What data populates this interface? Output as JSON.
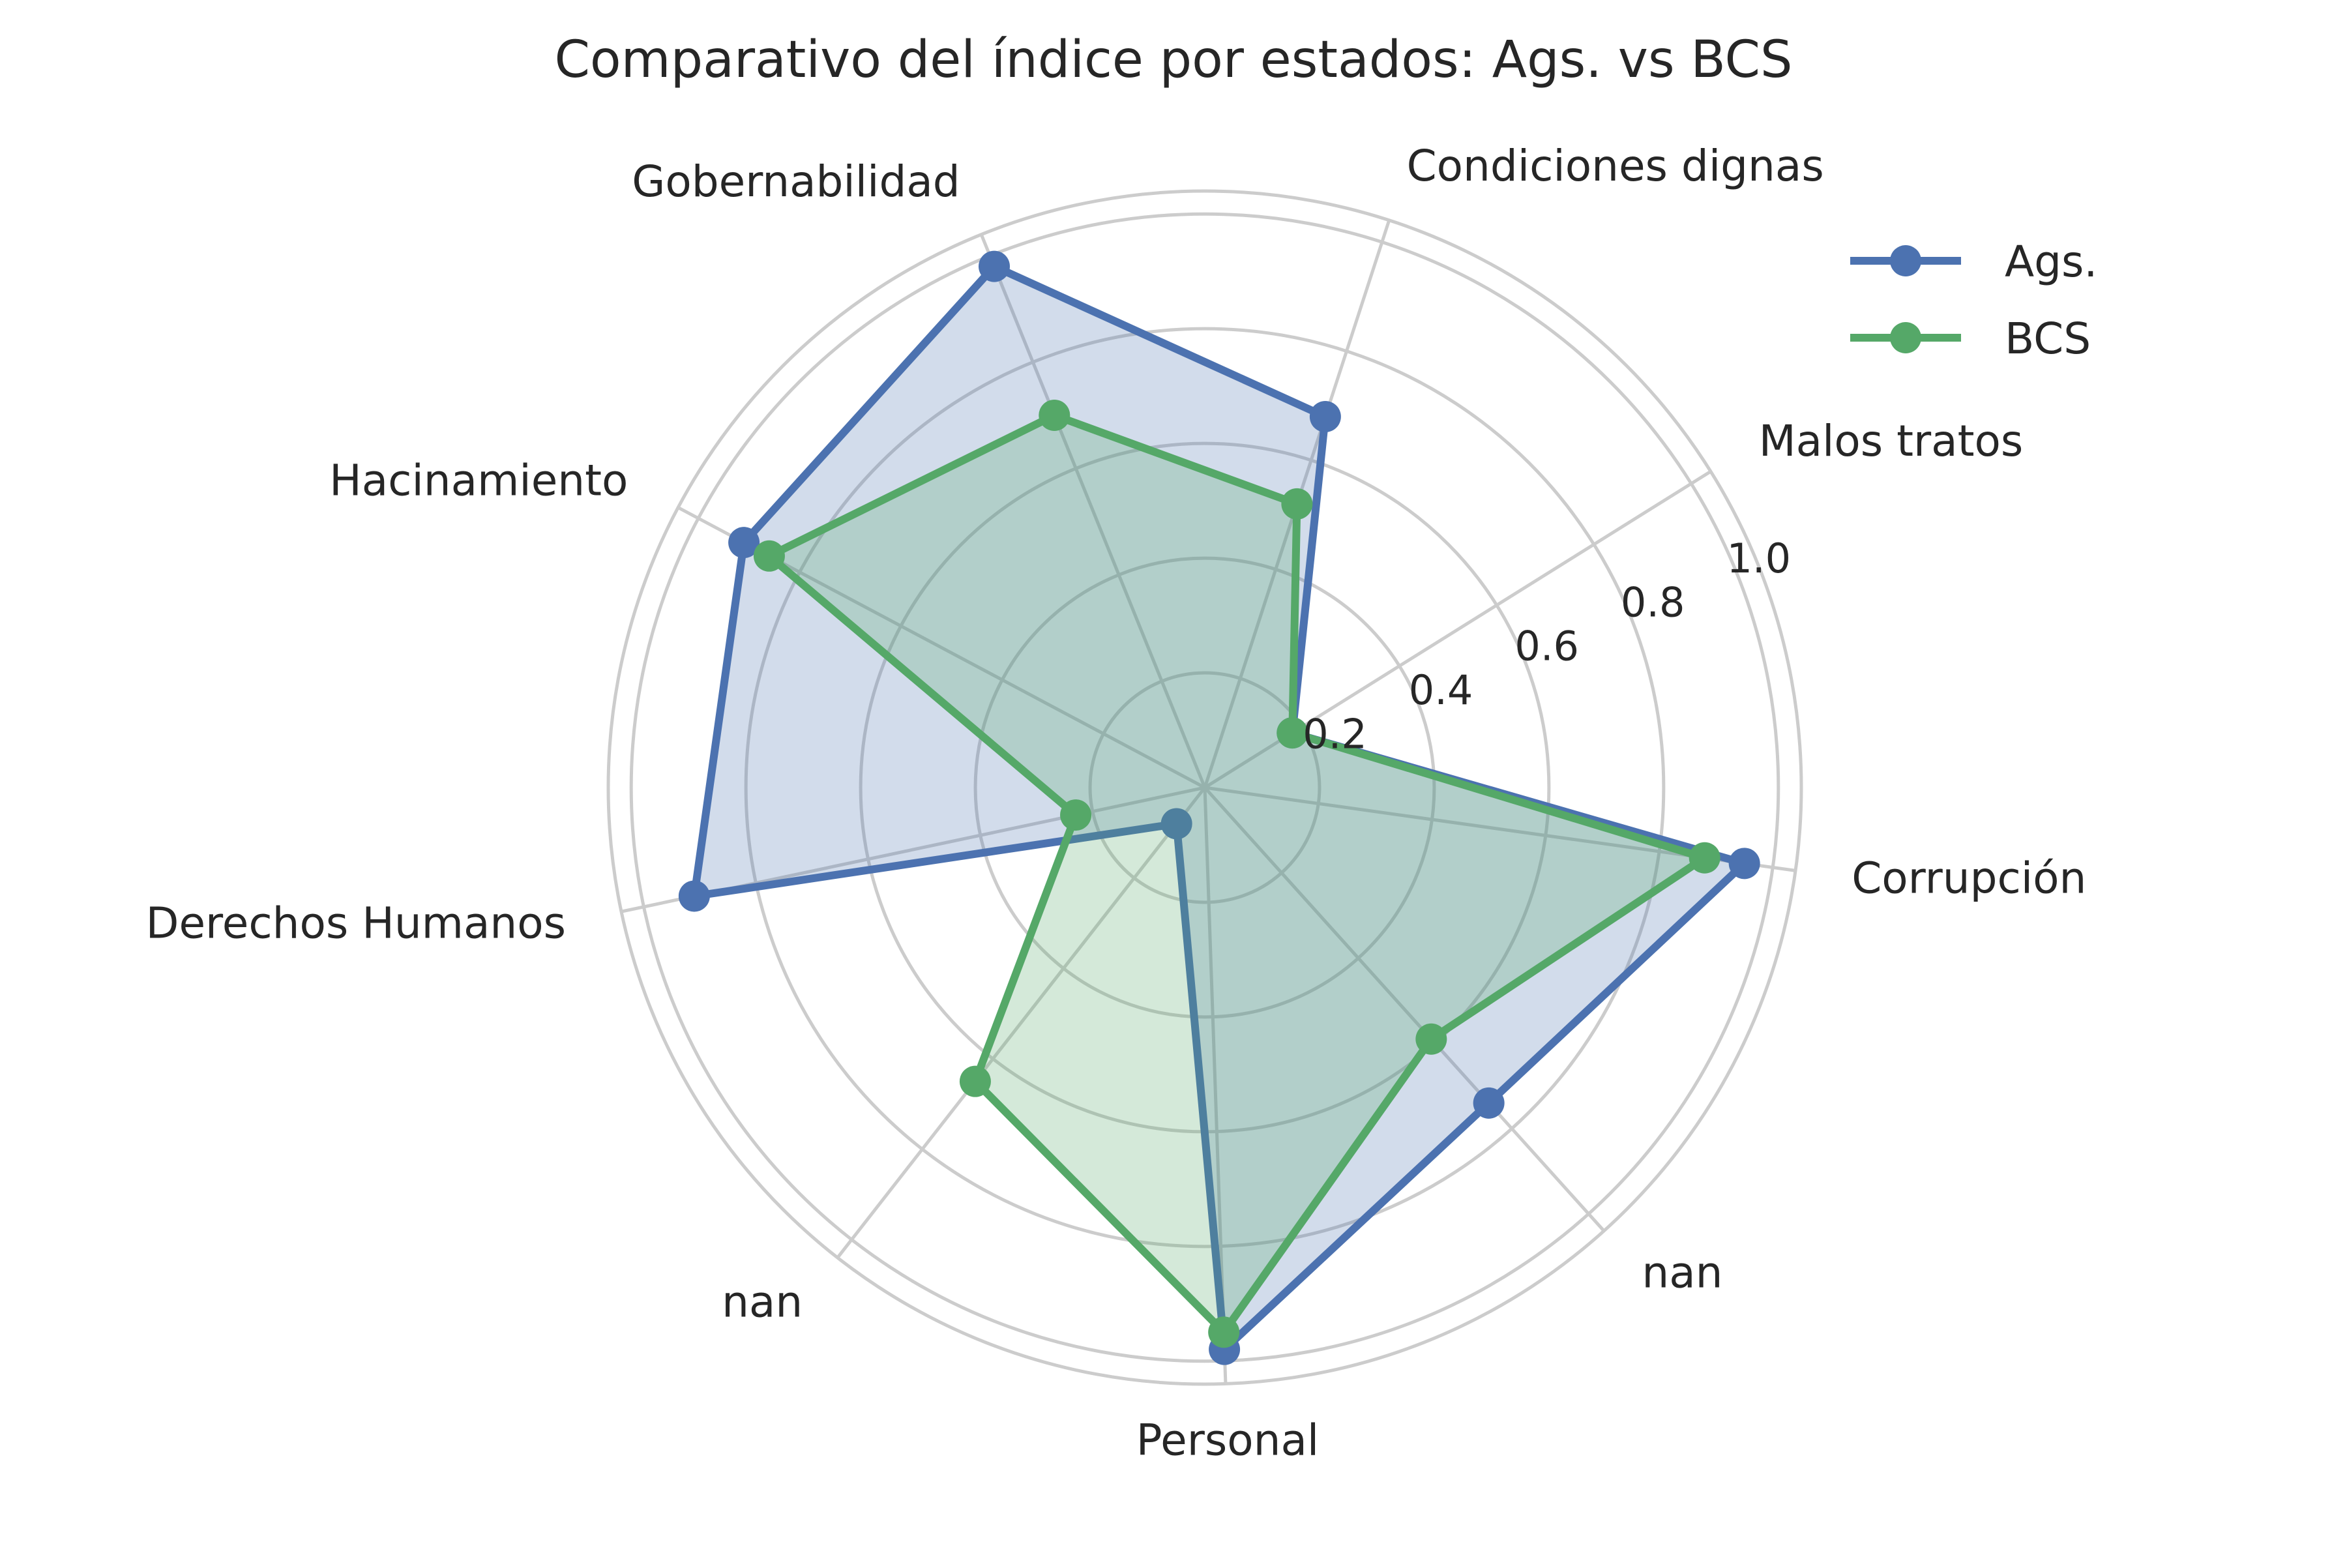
{
  "chart_data": {
    "type": "radar",
    "title": "Comparativo del índice por estados: Ags. vs BCS",
    "categories": [
      "Corrupción",
      "Malos tratos",
      "Condiciones dignas",
      "Gobernabilidad",
      "Hacinamiento",
      "Derechos Humanos",
      "nan",
      "Personal",
      "nan"
    ],
    "radial_ticks": [
      0.2,
      0.4,
      0.6,
      0.8,
      1.0
    ],
    "radial_tick_labels": [
      "0.2",
      "0.4",
      "0.6",
      "0.8",
      "1.0"
    ],
    "rlim": [
      0,
      1.04
    ],
    "grid": true,
    "legend_position": "top-right",
    "series": [
      {
        "name": "Ags.",
        "color": "#4c72b0",
        "values": [
          0.95,
          0.18,
          0.68,
          0.98,
          0.91,
          0.91,
          0.08,
          0.98,
          0.74
        ]
      },
      {
        "name": "BCS",
        "color": "#55a868",
        "values": [
          0.88,
          0.18,
          0.52,
          0.7,
          0.86,
          0.23,
          0.65,
          0.95,
          0.59
        ]
      }
    ]
  }
}
